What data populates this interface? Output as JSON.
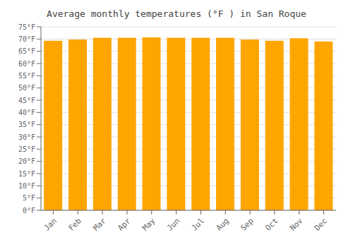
{
  "chart_data": {
    "type": "bar",
    "title": "Average monthly temperatures (°F ) in San Roque",
    "categories": [
      "Jan",
      "Feb",
      "Mar",
      "Apr",
      "May",
      "Jun",
      "Jul",
      "Aug",
      "Sep",
      "Oct",
      "Nov",
      "Dec"
    ],
    "values": [
      69.3,
      69.8,
      70.5,
      70.5,
      70.7,
      70.5,
      70.5,
      70.5,
      69.8,
      69.3,
      70.3,
      69.0
    ],
    "color": "#FFA500",
    "ylim": [
      0,
      75
    ],
    "yticks": [
      {
        "value": 0,
        "label": "0°F"
      },
      {
        "value": 5,
        "label": "5°F"
      },
      {
        "value": 10,
        "label": "10°F"
      },
      {
        "value": 15,
        "label": "15°F"
      },
      {
        "value": 20,
        "label": "20°F"
      },
      {
        "value": 25,
        "label": "25°F"
      },
      {
        "value": 30,
        "label": "30°F"
      },
      {
        "value": 35,
        "label": "35°F"
      },
      {
        "value": 40,
        "label": "40°F"
      },
      {
        "value": 45,
        "label": "45°F"
      },
      {
        "value": 50,
        "label": "50°F"
      },
      {
        "value": 55,
        "label": "55°F"
      },
      {
        "value": 60,
        "label": "60°F"
      },
      {
        "value": 65,
        "label": "65°F"
      },
      {
        "value": 70,
        "label": "70°F"
      },
      {
        "value": 75,
        "label": "75°F"
      }
    ],
    "grid": true
  }
}
